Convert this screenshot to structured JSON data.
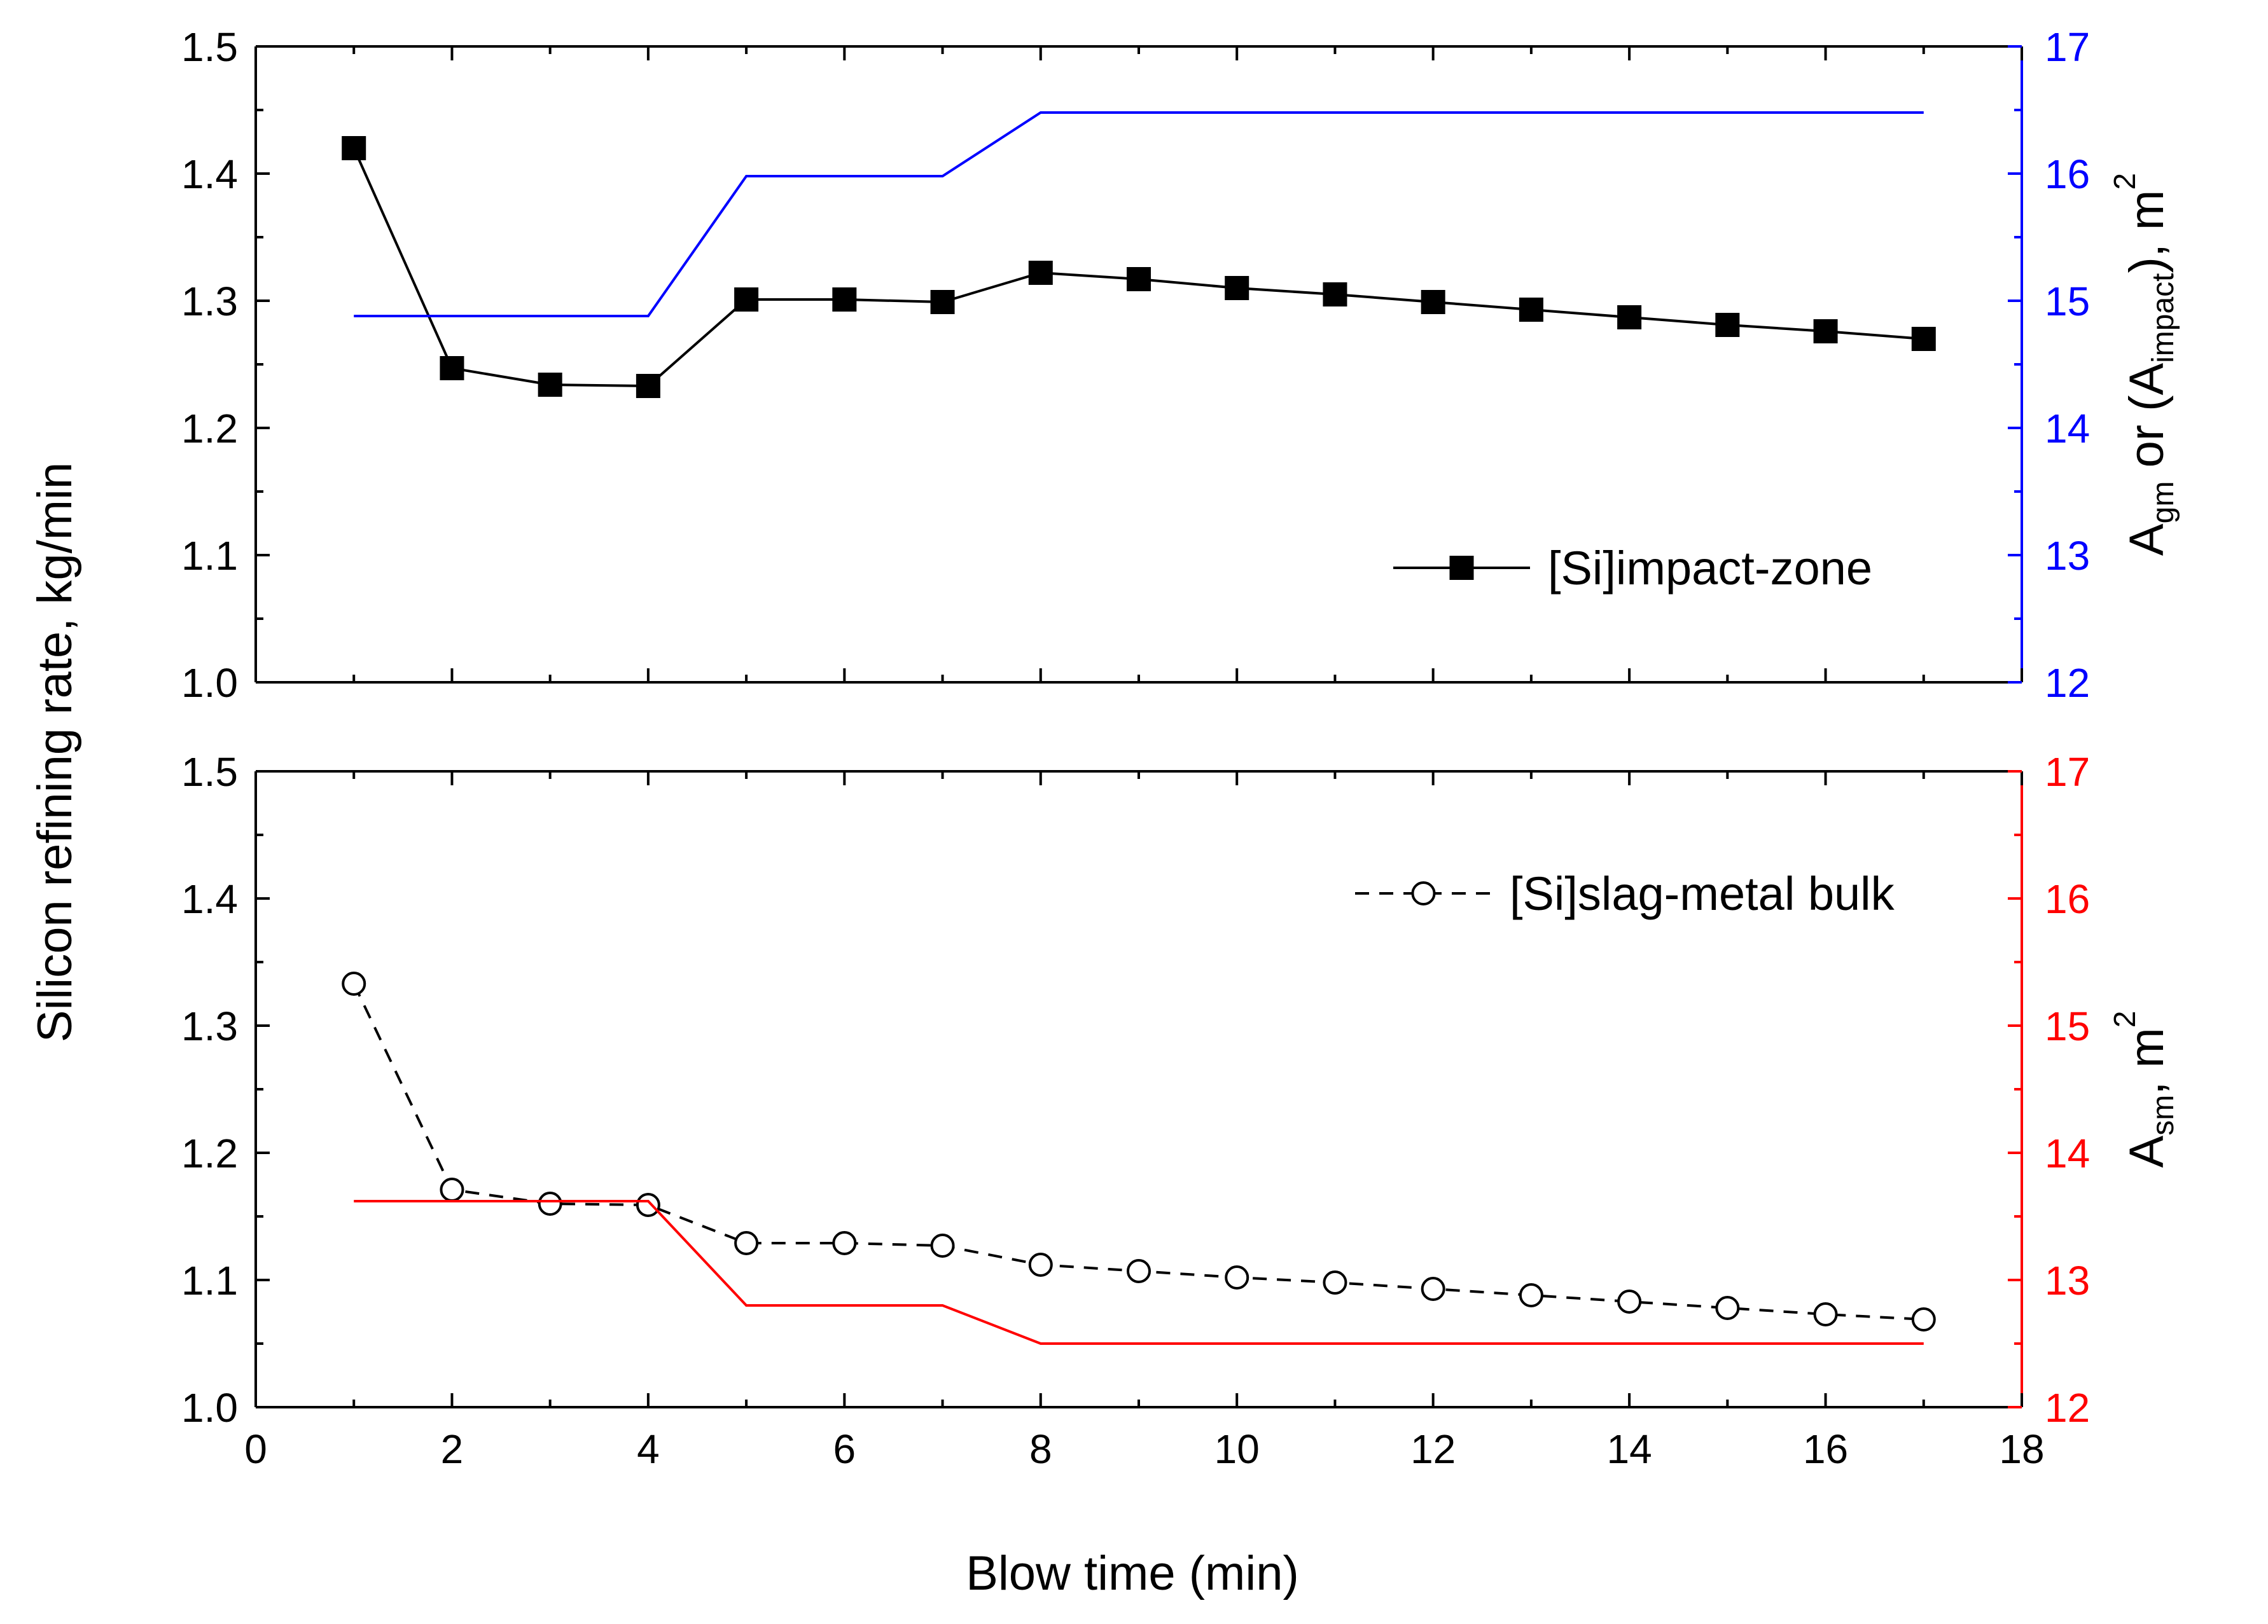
{
  "chart_data": [
    {
      "id": "top",
      "type": "line",
      "x": [
        1,
        2,
        3,
        4,
        5,
        6,
        7,
        8,
        9,
        10,
        11,
        12,
        13,
        14,
        15,
        16,
        17
      ],
      "xlim": [
        0,
        18
      ],
      "ylim_left": [
        1.0,
        1.5
      ],
      "ylim_right": [
        12,
        17
      ],
      "yticks_left": [
        "1.0",
        "1.1",
        "1.2",
        "1.3",
        "1.4",
        "1.5"
      ],
      "yticks_right": [
        "12",
        "13",
        "14",
        "15",
        "16",
        "17"
      ],
      "right_axis_color": "#0000ff",
      "right_axis_label": {
        "main": "A",
        "sub1": "gm",
        "mid": " or (A",
        "sub2": "impact",
        "tail": "), m",
        "sup": "2"
      },
      "series": [
        {
          "name": "[Si]impact-zone",
          "axis": "left",
          "marker": "filled-square",
          "line": "solid",
          "color": "#000000",
          "values": [
            1.42,
            1.247,
            1.234,
            1.233,
            1.301,
            1.301,
            1.299,
            1.322,
            1.317,
            1.31,
            1.305,
            1.299,
            1.293,
            1.287,
            1.281,
            1.276,
            1.27
          ]
        },
        {
          "name": "A_gm or (A_impact)",
          "axis": "right",
          "line": "solid",
          "color": "#0000ff",
          "values": [
            14.88,
            14.88,
            14.88,
            14.88,
            15.98,
            15.98,
            15.98,
            16.48,
            16.48,
            16.48,
            16.48,
            16.48,
            16.48,
            16.48,
            16.48,
            16.48,
            16.48
          ]
        }
      ],
      "legend": {
        "position": "lower-right",
        "label": "[Si]impact-zone"
      }
    },
    {
      "id": "bottom",
      "type": "line",
      "x": [
        1,
        2,
        3,
        4,
        5,
        6,
        7,
        8,
        9,
        10,
        11,
        12,
        13,
        14,
        15,
        16,
        17
      ],
      "xlim": [
        0,
        18
      ],
      "ylim_left": [
        1.0,
        1.5
      ],
      "ylim_right": [
        12,
        17
      ],
      "yticks_left": [
        "1.0",
        "1.1",
        "1.2",
        "1.3",
        "1.4",
        "1.5"
      ],
      "yticks_right": [
        "12",
        "13",
        "14",
        "15",
        "16",
        "17"
      ],
      "xticks": [
        "0",
        "2",
        "4",
        "6",
        "8",
        "10",
        "12",
        "14",
        "16",
        "18"
      ],
      "right_axis_color": "#ff0000",
      "right_axis_label": {
        "main": "A",
        "sub1": "sm",
        "tail": ", m",
        "sup": "2"
      },
      "series": [
        {
          "name": "[Si]slag-metal bulk",
          "axis": "left",
          "marker": "open-circle",
          "line": "dashed",
          "color": "#000000",
          "values": [
            1.333,
            1.171,
            1.16,
            1.159,
            1.129,
            1.129,
            1.127,
            1.112,
            1.107,
            1.102,
            1.098,
            1.093,
            1.088,
            1.083,
            1.078,
            1.073,
            1.069
          ]
        },
        {
          "name": "A_sm",
          "axis": "right",
          "line": "solid",
          "color": "#ff0000",
          "values": [
            13.62,
            13.62,
            13.62,
            13.62,
            12.8,
            12.8,
            12.8,
            12.5,
            12.5,
            12.5,
            12.5,
            12.5,
            12.5,
            12.5,
            12.5,
            12.5,
            12.5
          ]
        }
      ],
      "legend": {
        "position": "upper-right",
        "label": "[Si]slag-metal bulk"
      }
    }
  ],
  "shared": {
    "ylabel": "Silicon refining rate, kg/min",
    "xlabel": "Blow time (min)"
  }
}
